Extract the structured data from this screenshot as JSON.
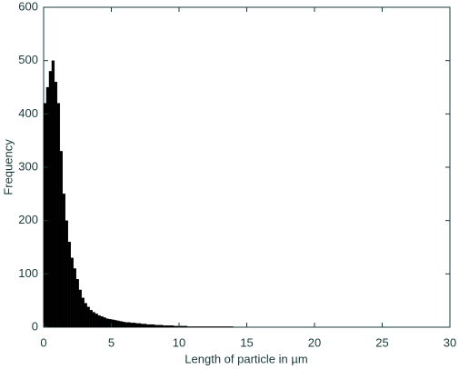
{
  "chart_data": {
    "type": "histogram",
    "xlabel": "Length of particle in µm",
    "ylabel": "Frequency",
    "color": "#000000",
    "bins": [
      0,
      0.2,
      0.4,
      0.6,
      0.8,
      1,
      1.2,
      1.4,
      1.6,
      1.8,
      2,
      2.2,
      2.4,
      2.6,
      2.8,
      3,
      3.2,
      3.4,
      3.6,
      3.8,
      4,
      4.2,
      4.4,
      4.6,
      4.8,
      5,
      5.2,
      5.4,
      5.6,
      5.8,
      6,
      6.2,
      6.4,
      6.6,
      6.8,
      7,
      7.2,
      7.4,
      7.6,
      7.8,
      8,
      8.2,
      8.4,
      8.6,
      8.8,
      9,
      9.2,
      9.4,
      9.6,
      9.8,
      10,
      10.2,
      10.4,
      10.6,
      10.8,
      11,
      11.2,
      11.4,
      11.6,
      11.8,
      12,
      12.2,
      12.4,
      12.6,
      12.8,
      13,
      13.2,
      13.4,
      13.6,
      13.8,
      14
    ],
    "counts": [
      420,
      450,
      480,
      500,
      460,
      420,
      330,
      250,
      200,
      160,
      130,
      110,
      90,
      70,
      55,
      45,
      38,
      32,
      28,
      25,
      22,
      20,
      18,
      16,
      15,
      14,
      13,
      12,
      11,
      10,
      9,
      9,
      8,
      8,
      7,
      7,
      6,
      6,
      5,
      5,
      5,
      4,
      4,
      4,
      3,
      3,
      3,
      3,
      2,
      2,
      2,
      2,
      2,
      1,
      1,
      1,
      1,
      1,
      1,
      1,
      1,
      1,
      1,
      1,
      1,
      1,
      1,
      1,
      1,
      1
    ],
    "xlim": [
      0,
      30
    ],
    "xticks": [
      0,
      5,
      10,
      15,
      20,
      25,
      30
    ],
    "ylim": [
      0,
      600
    ],
    "yticks": [
      0,
      100,
      200,
      300,
      400,
      500,
      600
    ]
  }
}
